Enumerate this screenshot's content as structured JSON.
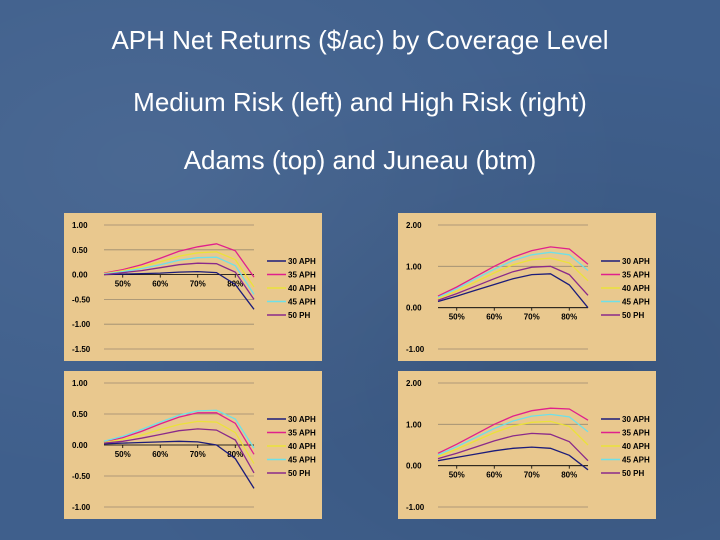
{
  "slide": {
    "title_line1": "APH Net Returns ($/ac) by Coverage Level",
    "title_line2": "Medium Risk (left) and High Risk (right)",
    "title_line3": "Adams (top) and Juneau (btm)"
  },
  "chart_data": [
    {
      "type": "line",
      "x": [
        0.45,
        0.5,
        0.55,
        0.6,
        0.65,
        0.7,
        0.75,
        0.8,
        0.85
      ],
      "xticks": [
        "50%",
        "60%",
        "70%",
        "80%"
      ],
      "yticks": [
        "1.00",
        "0.50",
        "0.00",
        "-0.50",
        "-1.00",
        "-1.50"
      ],
      "ytick_values": [
        1.0,
        0.5,
        0.0,
        -0.5,
        -1.0,
        -1.5
      ],
      "ylim": [
        -1.5,
        1.0
      ],
      "series": [
        {
          "name": "30 APH",
          "color": "#1c1c7a",
          "values": [
            0.0,
            0.01,
            0.02,
            0.03,
            0.05,
            0.06,
            0.04,
            -0.2,
            -0.7
          ]
        },
        {
          "name": "35 APH",
          "color": "#e0208c",
          "values": [
            0.03,
            0.1,
            0.2,
            0.33,
            0.47,
            0.56,
            0.62,
            0.48,
            -0.05
          ]
        },
        {
          "name": "40 APH",
          "color": "#ebe23a",
          "values": [
            0.02,
            0.08,
            0.16,
            0.26,
            0.37,
            0.44,
            0.46,
            0.3,
            -0.25
          ]
        },
        {
          "name": "45 APH",
          "color": "#6fe0e8",
          "values": [
            0.01,
            0.06,
            0.12,
            0.2,
            0.29,
            0.34,
            0.35,
            0.18,
            -0.4
          ]
        },
        {
          "name": "50 PH",
          "color": "#8a2a8a",
          "values": [
            0.0,
            0.04,
            0.08,
            0.14,
            0.2,
            0.23,
            0.22,
            0.05,
            -0.5
          ]
        }
      ]
    },
    {
      "type": "line",
      "x": [
        0.45,
        0.5,
        0.55,
        0.6,
        0.65,
        0.7,
        0.75,
        0.8,
        0.85
      ],
      "xticks": [
        "50%",
        "60%",
        "70%",
        "80%"
      ],
      "yticks": [
        "2.00",
        "1.00",
        "0.00",
        "-1.00"
      ],
      "ytick_values": [
        2.0,
        1.0,
        0.0,
        -1.0
      ],
      "ylim": [
        -1.0,
        2.0
      ],
      "series": [
        {
          "name": "30 APH",
          "color": "#1c1c7a",
          "values": [
            0.15,
            0.28,
            0.42,
            0.56,
            0.7,
            0.8,
            0.82,
            0.55,
            0.0
          ]
        },
        {
          "name": "35 APH",
          "color": "#e0208c",
          "values": [
            0.28,
            0.5,
            0.75,
            1.0,
            1.22,
            1.38,
            1.47,
            1.42,
            1.05
          ]
        },
        {
          "name": "40 APH",
          "color": "#ebe23a",
          "values": [
            0.22,
            0.4,
            0.62,
            0.84,
            1.04,
            1.16,
            1.2,
            1.08,
            0.65
          ]
        },
        {
          "name": "45 APH",
          "color": "#6fe0e8",
          "values": [
            0.25,
            0.46,
            0.7,
            0.93,
            1.14,
            1.28,
            1.34,
            1.28,
            0.9
          ]
        },
        {
          "name": "50 PH",
          "color": "#8a2a8a",
          "values": [
            0.18,
            0.34,
            0.52,
            0.7,
            0.87,
            0.98,
            1.0,
            0.8,
            0.3
          ]
        }
      ]
    },
    {
      "type": "line",
      "x": [
        0.45,
        0.5,
        0.55,
        0.6,
        0.65,
        0.7,
        0.75,
        0.8,
        0.85
      ],
      "xticks": [
        "50%",
        "60%",
        "70%",
        "80%"
      ],
      "yticks": [
        "1.00",
        "0.50",
        "0.00",
        "-0.50",
        "-1.00"
      ],
      "ytick_values": [
        1.0,
        0.5,
        0.0,
        -0.5,
        -1.0
      ],
      "ylim": [
        -1.0,
        1.0
      ],
      "series": [
        {
          "name": "30 APH",
          "color": "#1c1c7a",
          "values": [
            0.02,
            0.03,
            0.04,
            0.05,
            0.06,
            0.05,
            0.0,
            -0.22,
            -0.7
          ]
        },
        {
          "name": "35 APH",
          "color": "#e0208c",
          "values": [
            0.05,
            0.12,
            0.22,
            0.34,
            0.45,
            0.52,
            0.52,
            0.35,
            -0.15
          ]
        },
        {
          "name": "40 APH",
          "color": "#ebe23a",
          "values": [
            0.04,
            0.09,
            0.16,
            0.25,
            0.33,
            0.38,
            0.37,
            0.2,
            -0.3
          ]
        },
        {
          "name": "45 APH",
          "color": "#6fe0e8",
          "values": [
            0.06,
            0.14,
            0.25,
            0.37,
            0.48,
            0.55,
            0.56,
            0.42,
            -0.05
          ]
        },
        {
          "name": "50 PH",
          "color": "#8a2a8a",
          "values": [
            0.03,
            0.06,
            0.11,
            0.17,
            0.23,
            0.26,
            0.24,
            0.08,
            -0.45
          ]
        }
      ]
    },
    {
      "type": "line",
      "x": [
        0.45,
        0.5,
        0.55,
        0.6,
        0.65,
        0.7,
        0.75,
        0.8,
        0.85
      ],
      "xticks": [
        "50%",
        "60%",
        "70%",
        "80%"
      ],
      "yticks": [
        "2.00",
        "1.00",
        "0.00",
        "-1.00"
      ],
      "ytick_values": [
        2.0,
        1.0,
        0.0,
        -1.0
      ],
      "ylim": [
        -1.0,
        2.0
      ],
      "series": [
        {
          "name": "30 APH",
          "color": "#1c1c7a",
          "values": [
            0.12,
            0.2,
            0.28,
            0.36,
            0.42,
            0.45,
            0.42,
            0.25,
            -0.1
          ]
        },
        {
          "name": "35 APH",
          "color": "#e0208c",
          "values": [
            0.3,
            0.52,
            0.76,
            1.0,
            1.2,
            1.33,
            1.39,
            1.37,
            1.1
          ]
        },
        {
          "name": "40 APH",
          "color": "#ebe23a",
          "values": [
            0.22,
            0.4,
            0.6,
            0.8,
            0.96,
            1.05,
            1.07,
            0.95,
            0.5
          ]
        },
        {
          "name": "45 APH",
          "color": "#6fe0e8",
          "values": [
            0.26,
            0.46,
            0.68,
            0.9,
            1.08,
            1.2,
            1.24,
            1.18,
            0.82
          ]
        },
        {
          "name": "50 PH",
          "color": "#8a2a8a",
          "values": [
            0.17,
            0.3,
            0.45,
            0.6,
            0.72,
            0.78,
            0.76,
            0.58,
            0.12
          ]
        }
      ]
    }
  ]
}
